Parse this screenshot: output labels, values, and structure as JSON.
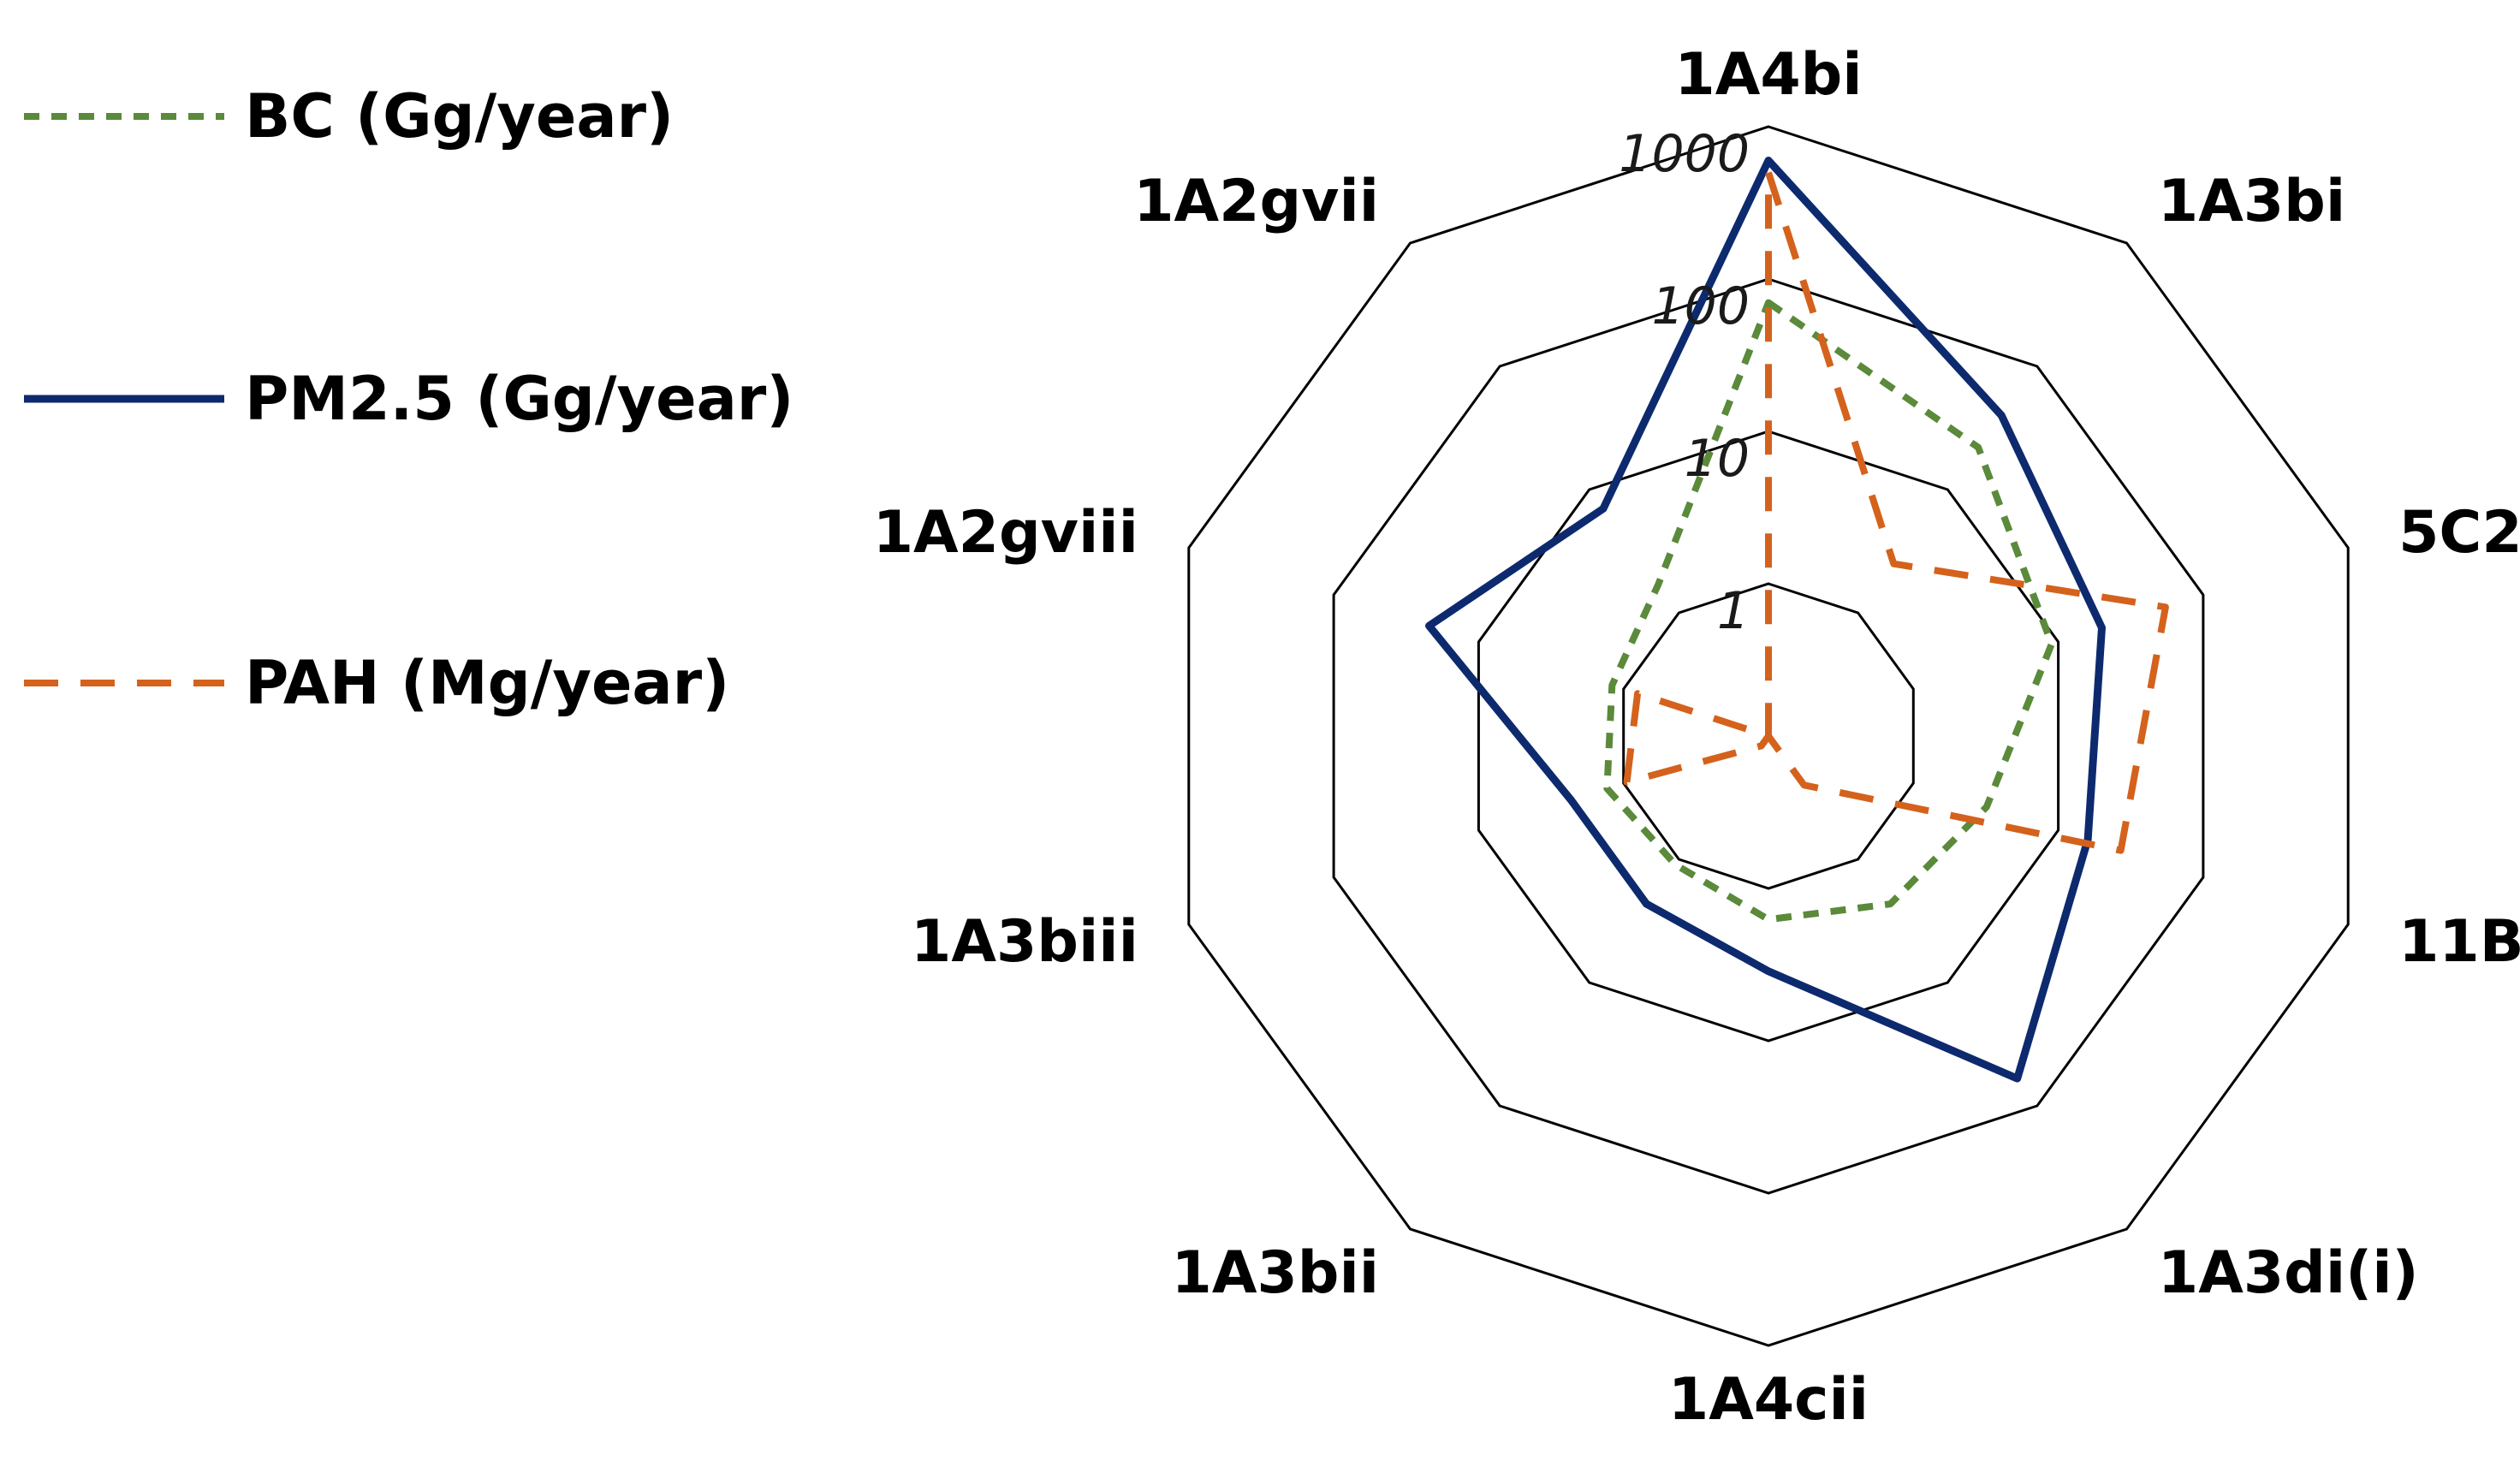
{
  "chart_data": {
    "type": "radar",
    "scale": "log",
    "rlim": [
      0.1,
      1000
    ],
    "tick_values": [
      1,
      10,
      100,
      1000
    ],
    "tick_labels": [
      "1",
      "10",
      "100",
      "1000"
    ],
    "categories": [
      "1A4bi",
      "1A3bi",
      "5C2",
      "11B",
      "1A3di(i)",
      "1A4cii",
      "1A3bii",
      "1A3biii",
      "1A2gviii",
      "1A2gvii"
    ],
    "legend_position": "left",
    "series": [
      {
        "name": "BC (Gg/year)",
        "color": "#5a8a3a",
        "style": "dotted",
        "values": [
          70,
          22,
          9,
          3.2,
          2.3,
          1.6,
          1.1,
          1.3,
          1.2,
          1.7
        ]
      },
      {
        "name": "PM2.5 (Gg/year)",
        "color": "#0d2a6e",
        "style": "solid",
        "values": [
          600,
          40,
          20,
          16,
          60,
          3.5,
          2.3,
          2.3,
          22,
          7
        ]
      },
      {
        "name": "PAH (Mg/year)",
        "color": "#d4621c",
        "style": "dashed",
        "values": [
          500,
          2.5,
          55,
          27,
          0.25,
          0.1,
          0.12,
          0.95,
          0.8,
          0.1
        ]
      }
    ]
  }
}
